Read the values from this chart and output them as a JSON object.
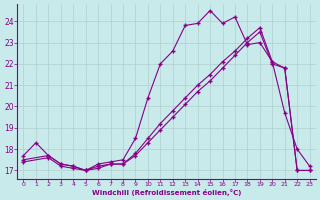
{
  "xlabel": "Windchill (Refroidissement éolien,°C)",
  "background_color": "#c8eaea",
  "grid_color": "#b0d0d0",
  "line_color": "#880088",
  "xlim": [
    -0.5,
    23.5
  ],
  "ylim": [
    16.6,
    24.8
  ],
  "yticks": [
    17,
    18,
    19,
    20,
    21,
    22,
    23,
    24
  ],
  "xticks": [
    0,
    1,
    2,
    3,
    4,
    5,
    6,
    7,
    8,
    9,
    10,
    11,
    12,
    13,
    14,
    15,
    16,
    17,
    18,
    19,
    20,
    21,
    22,
    23
  ],
  "series1_x": [
    0,
    1,
    2,
    3,
    4,
    5,
    6,
    7,
    8,
    9,
    10,
    11,
    12,
    13,
    14,
    15,
    16,
    17,
    18,
    19,
    20,
    21,
    22,
    23
  ],
  "series1_y": [
    17.7,
    18.3,
    17.7,
    17.3,
    17.2,
    17.0,
    17.3,
    17.4,
    17.5,
    18.5,
    20.4,
    22.0,
    22.6,
    23.8,
    23.9,
    24.5,
    23.9,
    24.2,
    22.9,
    23.0,
    22.1,
    19.7,
    18.0,
    17.2
  ],
  "series2_x": [
    0,
    2,
    3,
    4,
    5,
    6,
    7,
    8,
    9,
    10,
    11,
    12,
    13,
    14,
    15,
    16,
    17,
    18,
    19,
    20,
    21,
    22,
    23
  ],
  "series2_y": [
    17.5,
    17.7,
    17.3,
    17.2,
    17.0,
    17.2,
    17.3,
    17.3,
    17.8,
    18.5,
    19.2,
    19.8,
    20.4,
    21.0,
    21.5,
    22.1,
    22.6,
    23.2,
    23.7,
    22.1,
    21.8,
    17.0,
    17.0
  ],
  "series3_x": [
    0,
    2,
    3,
    4,
    5,
    6,
    7,
    8,
    9,
    10,
    11,
    12,
    13,
    14,
    15,
    16,
    17,
    18,
    19,
    20,
    21,
    22,
    23
  ],
  "series3_y": [
    17.4,
    17.6,
    17.2,
    17.1,
    17.0,
    17.1,
    17.3,
    17.3,
    17.7,
    18.3,
    18.9,
    19.5,
    20.1,
    20.7,
    21.2,
    21.8,
    22.4,
    23.0,
    23.5,
    22.0,
    21.8,
    17.0,
    17.0
  ]
}
